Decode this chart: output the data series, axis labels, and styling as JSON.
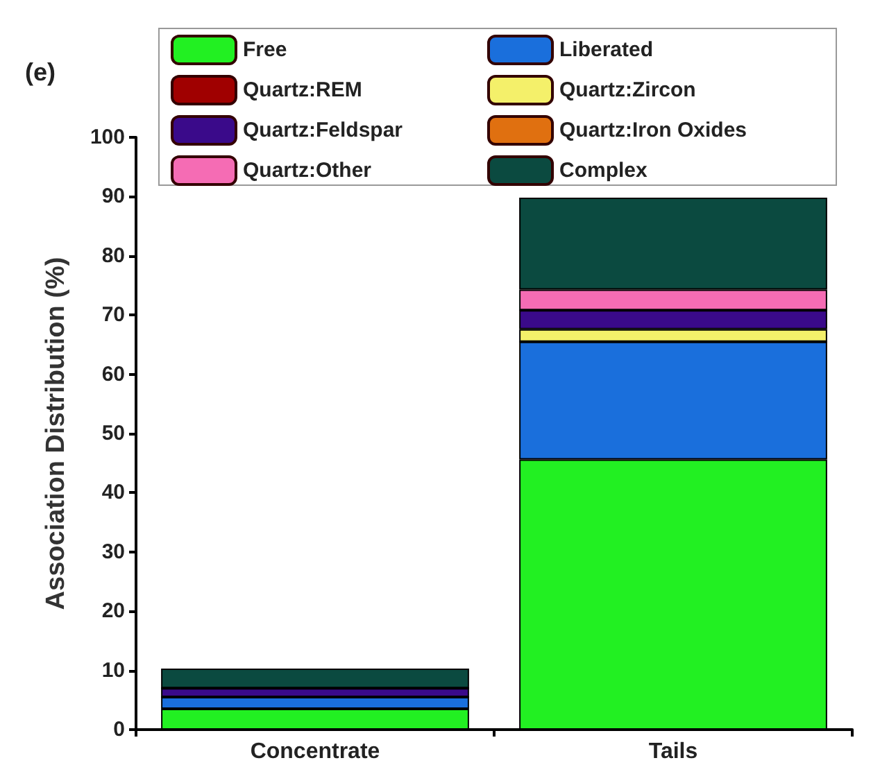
{
  "chart_data": {
    "type": "bar",
    "stacked": true,
    "ylabel": "Association Distribution (%)",
    "annotations": [
      "(e)"
    ],
    "categories": [
      "Concentrate",
      "Tails"
    ],
    "ylim": [
      0,
      100
    ],
    "yticks": [
      0,
      10,
      20,
      30,
      40,
      50,
      60,
      70,
      80,
      90,
      100
    ],
    "grid": false,
    "legend": "top",
    "series": [
      {
        "name": "Free",
        "color": "#22f022",
        "values": [
          3.5,
          45.6
        ]
      },
      {
        "name": "Liberated",
        "color": "#1a6fdc",
        "values": [
          2,
          19.9
        ]
      },
      {
        "name": "Quartz:REM",
        "color": "#a00000",
        "values": [
          0,
          0
        ]
      },
      {
        "name": "Quartz:Zircon",
        "color": "#f4f06a",
        "values": [
          0,
          2.1
        ]
      },
      {
        "name": "Quartz:Feldspar",
        "color": "#3a0a8a",
        "values": [
          1.5,
          3.2
        ]
      },
      {
        "name": "Quartz:Iron Oxides",
        "color": "#e07010",
        "values": [
          0,
          0
        ]
      },
      {
        "name": "Quartz:Other",
        "color": "#f56cb4",
        "values": [
          0,
          3.5
        ]
      },
      {
        "name": "Complex",
        "color": "#0b4a40",
        "values": [
          3.3,
          15.5
        ]
      }
    ]
  }
}
